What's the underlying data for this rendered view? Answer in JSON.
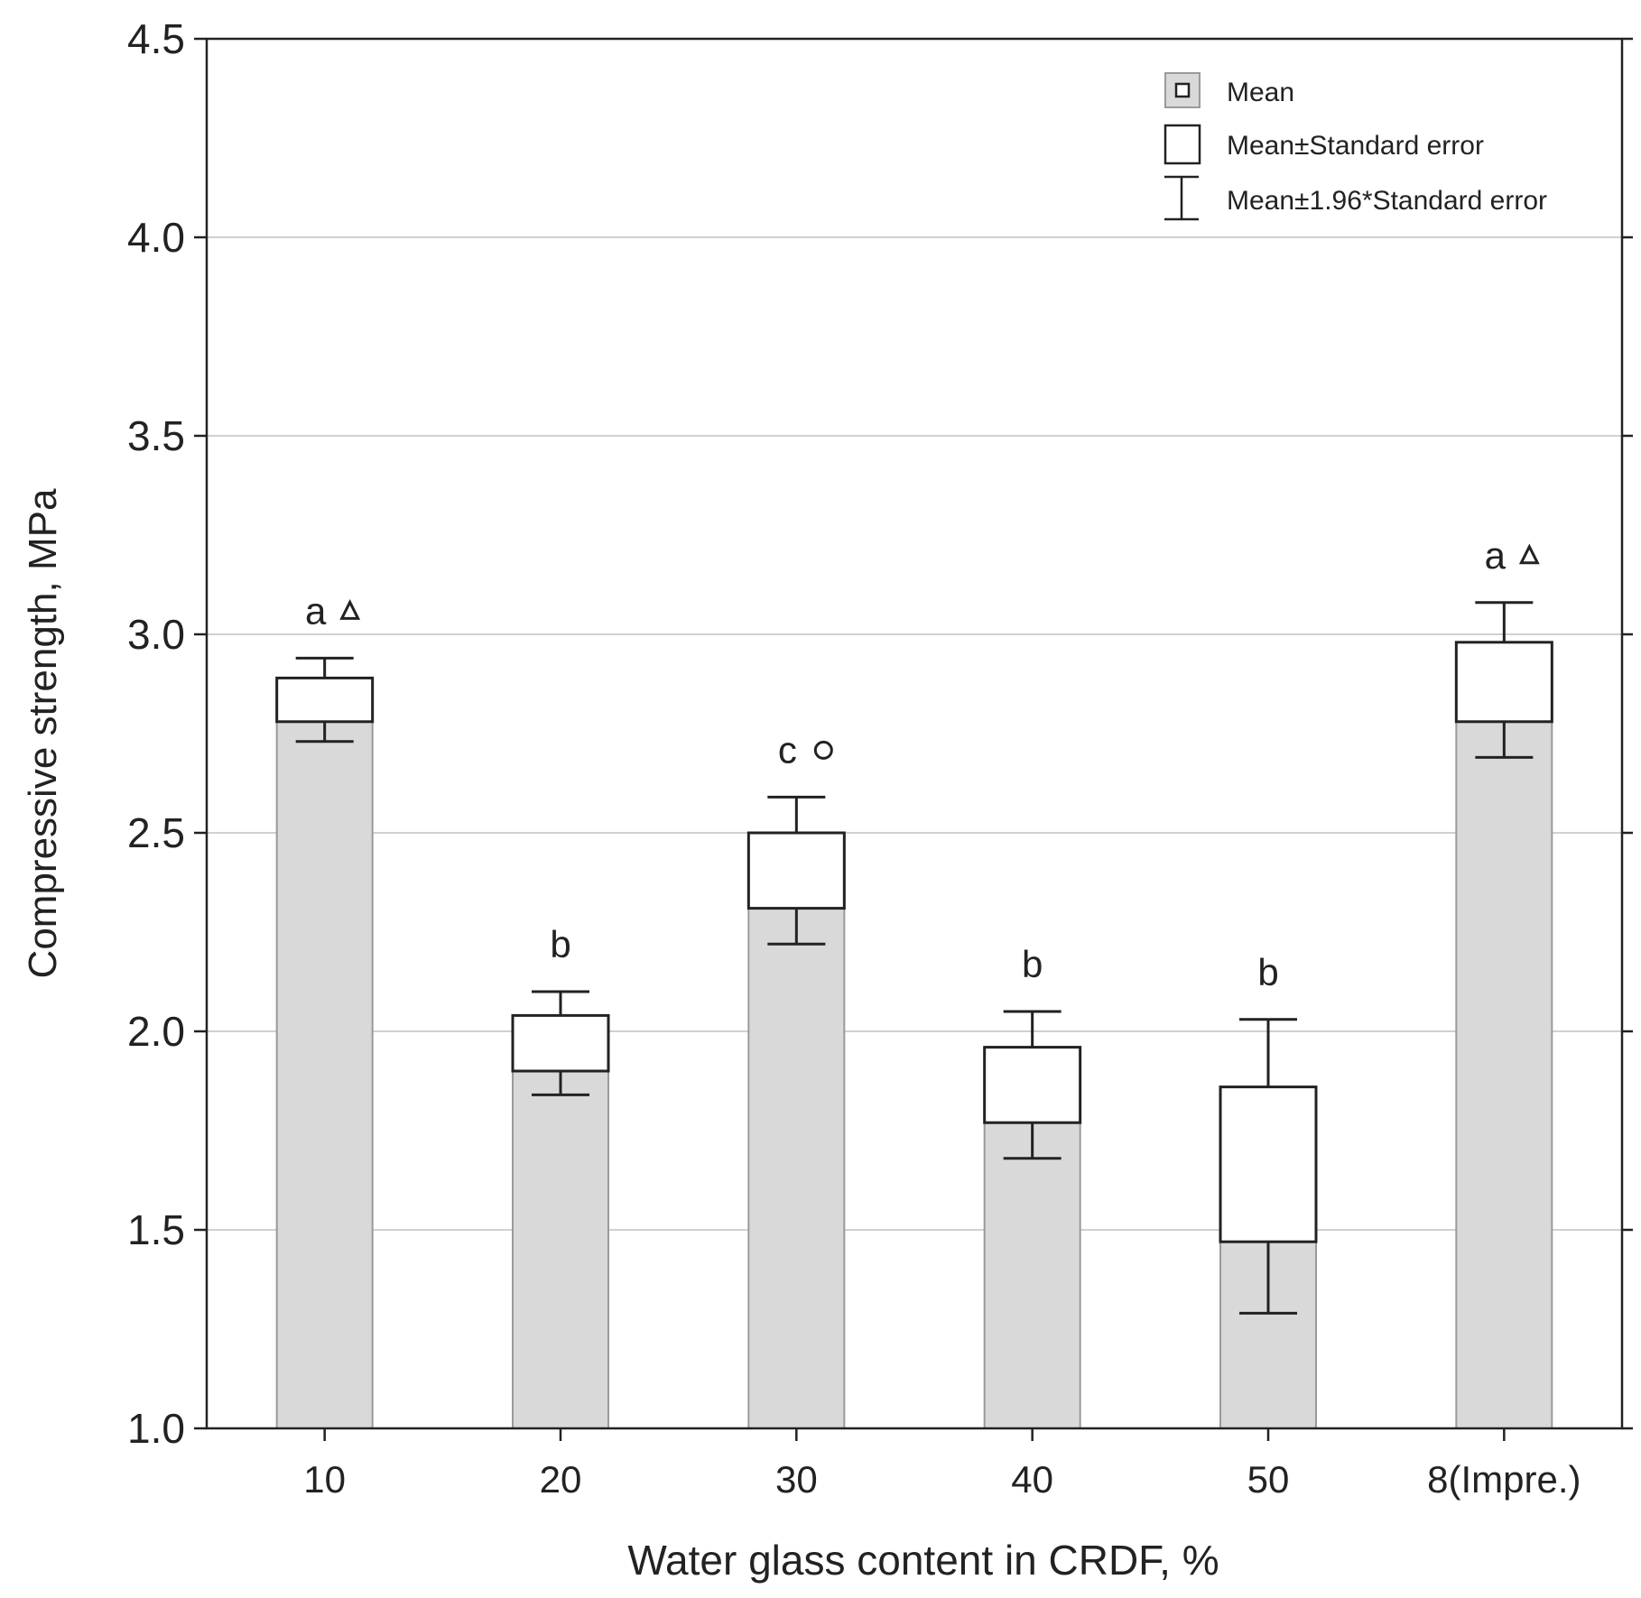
{
  "chart_data": {
    "type": "bar",
    "title": "",
    "xlabel": "Water glass content in CRDF, %",
    "ylabel": "Compressive strength, MPa",
    "ylim": [
      1.0,
      4.5
    ],
    "yticks": [
      "1.0",
      "1.5",
      "2.0",
      "2.5",
      "3.0",
      "3.5",
      "4.0",
      "4.5"
    ],
    "grid": true,
    "legend_position": "top-right",
    "legend": [
      {
        "key": "mean",
        "label": "Mean"
      },
      {
        "key": "se",
        "label": "Mean±Standard error"
      },
      {
        "key": "ci",
        "label": "Mean±1.96*Standard error"
      }
    ],
    "categories": [
      "10",
      "20",
      "30",
      "40",
      "50",
      "8(Impre.)"
    ],
    "series": [
      {
        "values": [
          2.84,
          1.97,
          2.41,
          1.87,
          1.67,
          2.89
        ],
        "se_low": [
          2.78,
          1.9,
          2.31,
          1.77,
          1.47,
          2.78
        ],
        "se_high": [
          2.89,
          2.04,
          2.5,
          1.96,
          1.86,
          2.98
        ],
        "ci_low": [
          2.73,
          1.84,
          2.22,
          1.68,
          1.29,
          2.69
        ],
        "ci_high": [
          2.94,
          2.1,
          2.59,
          2.05,
          2.03,
          3.08
        ]
      }
    ],
    "annotations": [
      {
        "letter": "a",
        "symbol": "triangle"
      },
      {
        "letter": "b",
        "symbol": "none"
      },
      {
        "letter": "c",
        "symbol": "circle"
      },
      {
        "letter": "b",
        "symbol": "none"
      },
      {
        "letter": "b",
        "symbol": "none"
      },
      {
        "letter": "a",
        "symbol": "triangle"
      }
    ],
    "colors": {
      "bar_fill": "#d9d9d9",
      "bar_stroke": "#9a9a9a",
      "box_fill": "#ffffff",
      "line": "#222222",
      "grid": "#d0d0d0"
    }
  }
}
